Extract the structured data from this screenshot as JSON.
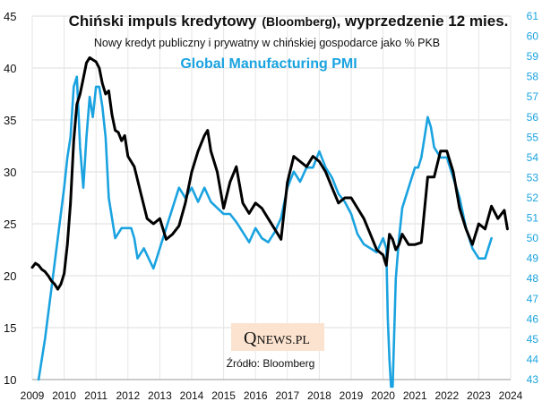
{
  "chart_data": {
    "type": "line",
    "title": "Chiński impuls kredytowy",
    "title_paren": "(Bloomberg)",
    "title_suffix": ", wyprzedzenie 12 mies.",
    "subtitle": "Nowy kredyt publiczny i prywatny w chińskiej gospodarce jako % PKB",
    "pmi_title": "Global Manufacturing PMI",
    "source": "Źródło: Bloomberg",
    "logo": {
      "q": "Q",
      "rest": "NEWS.PL"
    },
    "grid": true,
    "x_ticks": [
      "2009",
      "2010",
      "2011",
      "2012",
      "2013",
      "2014",
      "2015",
      "2016",
      "2017",
      "2018",
      "2019",
      "2020",
      "2021",
      "2022",
      "2023",
      "2024"
    ],
    "y_left": {
      "min": 10,
      "max": 45,
      "ticks": [
        "10",
        "15",
        "20",
        "25",
        "30",
        "35",
        "40",
        "45"
      ]
    },
    "y_right": {
      "min": 43,
      "max": 61,
      "ticks": [
        "43",
        "44",
        "45",
        "46",
        "47",
        "48",
        "49",
        "50",
        "51",
        "52",
        "53",
        "54",
        "55",
        "56",
        "57",
        "58",
        "59",
        "60",
        "61"
      ]
    },
    "colors": {
      "credit": "#000000",
      "pmi": "#1aa3e0"
    },
    "series": [
      {
        "axis": "left",
        "x": [
          2009.0,
          2009.1,
          2009.2,
          2009.3,
          2009.4,
          2009.5,
          2009.6,
          2009.7,
          2009.8,
          2009.9,
          2010.0,
          2010.1,
          2010.2,
          2010.3,
          2010.4,
          2010.5,
          2010.6,
          2010.7,
          2010.8,
          2010.9,
          2011.0,
          2011.1,
          2011.2,
          2011.3,
          2011.4,
          2011.5,
          2011.6,
          2011.7,
          2011.8,
          2011.9,
          2012.0,
          2012.2,
          2012.4,
          2012.6,
          2012.8,
          2013.0,
          2013.2,
          2013.4,
          2013.6,
          2013.8,
          2014.0,
          2014.2,
          2014.4,
          2014.5,
          2014.6,
          2014.8,
          2015.0,
          2015.2,
          2015.4,
          2015.6,
          2015.8,
          2016.0,
          2016.2,
          2016.4,
          2016.6,
          2016.8,
          2017.0,
          2017.2,
          2017.4,
          2017.6,
          2017.8,
          2018.0,
          2018.2,
          2018.4,
          2018.6,
          2018.8,
          2019.0,
          2019.2,
          2019.4,
          2019.6,
          2019.8,
          2020.0,
          2020.1,
          2020.2,
          2020.3,
          2020.4,
          2020.5,
          2020.6,
          2020.8,
          2021.0,
          2021.2,
          2021.4,
          2021.6,
          2021.8,
          2022.0,
          2022.2,
          2022.4,
          2022.6,
          2022.8,
          2023.0,
          2023.2,
          2023.4,
          2023.6,
          2023.8,
          2023.9
        ],
        "y": [
          20.8,
          21.2,
          21.0,
          20.6,
          20.4,
          20.0,
          19.5,
          19.2,
          18.7,
          19.2,
          20.2,
          23.0,
          27.0,
          33.0,
          36.5,
          37.5,
          39.0,
          40.5,
          41.0,
          40.8,
          40.6,
          40.0,
          38.5,
          37.5,
          37.8,
          35.5,
          34.0,
          33.8,
          33.0,
          33.5,
          31.5,
          30.5,
          28.0,
          25.5,
          25.0,
          25.5,
          23.5,
          24.0,
          24.8,
          27.0,
          30.0,
          32.0,
          33.5,
          34.0,
          32.0,
          30.0,
          26.5,
          29.0,
          30.5,
          27.0,
          26.0,
          27.0,
          26.5,
          25.5,
          24.5,
          23.5,
          29.0,
          31.5,
          31.0,
          30.5,
          31.5,
          31.0,
          30.0,
          28.5,
          27.0,
          27.5,
          27.5,
          26.5,
          25.5,
          24.0,
          22.5,
          22.0,
          21.0,
          24.0,
          23.5,
          22.5,
          23.0,
          24.0,
          23.0,
          23.0,
          23.2,
          29.5,
          29.5,
          32.0,
          32.0,
          30.0,
          26.5,
          24.5,
          23.0,
          25.0,
          24.5,
          26.7,
          25.5,
          26.3,
          24.5
        ],
        "label": ""
      },
      {
        "axis": "right",
        "x": [
          2009.2,
          2009.4,
          2009.6,
          2009.8,
          2010.0,
          2010.1,
          2010.2,
          2010.3,
          2010.4,
          2010.5,
          2010.6,
          2010.7,
          2010.8,
          2010.9,
          2011.0,
          2011.1,
          2011.2,
          2011.3,
          2011.4,
          2011.5,
          2011.6,
          2011.8,
          2012.0,
          2012.1,
          2012.2,
          2012.3,
          2012.5,
          2012.8,
          2013.0,
          2013.2,
          2013.4,
          2013.6,
          2013.8,
          2014.0,
          2014.2,
          2014.4,
          2014.6,
          2014.8,
          2015.0,
          2015.2,
          2015.4,
          2015.6,
          2015.8,
          2016.0,
          2016.2,
          2016.4,
          2016.6,
          2016.8,
          2017.0,
          2017.2,
          2017.4,
          2017.6,
          2017.8,
          2018.0,
          2018.2,
          2018.4,
          2018.6,
          2018.8,
          2019.0,
          2019.2,
          2019.4,
          2019.6,
          2019.8,
          2020.0,
          2020.1,
          2020.15,
          2020.2,
          2020.25,
          2020.3,
          2020.4,
          2020.5,
          2020.6,
          2020.8,
          2021.0,
          2021.1,
          2021.2,
          2021.3,
          2021.4,
          2021.5,
          2021.6,
          2021.8,
          2022.0,
          2022.2,
          2022.4,
          2022.6,
          2022.8,
          2023.0,
          2023.2,
          2023.4
        ],
        "y": [
          43.0,
          45.0,
          47.5,
          50.0,
          52.5,
          54.0,
          55.0,
          57.5,
          58.0,
          54.5,
          52.5,
          55.0,
          57.0,
          56.0,
          57.5,
          57.5,
          56.5,
          55.0,
          52.0,
          51.0,
          50.0,
          50.5,
          50.5,
          50.5,
          50.0,
          49.0,
          49.5,
          48.5,
          49.5,
          50.5,
          51.5,
          52.5,
          52.0,
          52.5,
          51.8,
          52.5,
          51.8,
          51.5,
          51.2,
          51.2,
          50.8,
          50.3,
          49.8,
          50.5,
          50.0,
          49.8,
          50.3,
          51.0,
          52.5,
          53.3,
          52.8,
          53.5,
          53.5,
          54.3,
          53.5,
          53.0,
          52.2,
          51.8,
          51.2,
          50.2,
          49.7,
          49.5,
          49.3,
          50.0,
          49.5,
          46.0,
          44.0,
          40.5,
          42.5,
          48.0,
          50.0,
          51.5,
          52.5,
          53.5,
          53.5,
          54.0,
          55.0,
          56.0,
          55.5,
          54.5,
          54.0,
          54.0,
          53.0,
          52.0,
          50.5,
          49.5,
          49.0,
          49.0,
          50.0
        ],
        "label": ""
      }
    ]
  }
}
